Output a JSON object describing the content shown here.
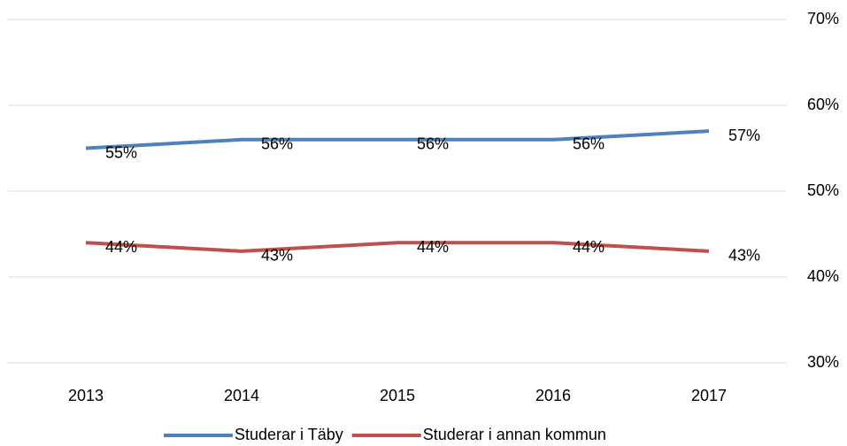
{
  "chart_data": {
    "type": "line",
    "categories": [
      "2013",
      "2014",
      "2015",
      "2016",
      "2017"
    ],
    "series": [
      {
        "name": "Studerar i Täby",
        "color": "#4f81bd",
        "values": [
          55,
          56,
          56,
          56,
          57
        ],
        "value_labels": [
          "55%",
          "56%",
          "56%",
          "56%",
          "57%"
        ]
      },
      {
        "name": "Studerar i annan kommun",
        "color": "#c0504d",
        "values": [
          44,
          43,
          44,
          44,
          43
        ],
        "value_labels": [
          "44%",
          "43%",
          "44%",
          "44%",
          "43%"
        ]
      }
    ],
    "ylim": [
      30,
      70
    ],
    "yticks": [
      {
        "value": 30,
        "label": "30%"
      },
      {
        "value": 40,
        "label": "40%"
      },
      {
        "value": 50,
        "label": "50%"
      },
      {
        "value": 60,
        "label": "60%"
      },
      {
        "value": 70,
        "label": "70%"
      }
    ],
    "grid": true,
    "legend": "bottom"
  }
}
